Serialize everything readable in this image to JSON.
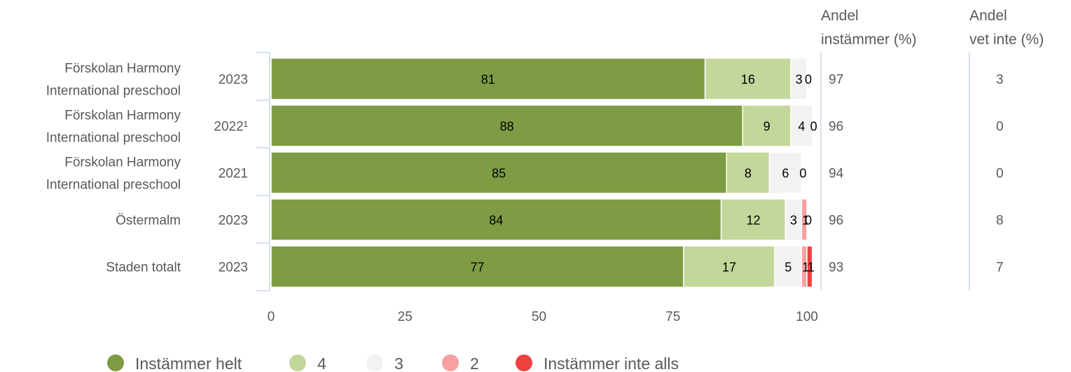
{
  "chart_data": {
    "type": "bar",
    "orientation": "horizontal",
    "stacked": true,
    "rows": [
      {
        "category": "Förskolan Harmony International preschool",
        "category_lines": [
          "Förskolan Harmony",
          "International preschool"
        ],
        "year": "2023"
      },
      {
        "category": "Förskolan Harmony International preschool",
        "category_lines": [
          "Förskolan Harmony",
          "International preschool"
        ],
        "year": "2022¹"
      },
      {
        "category": "Förskolan Harmony International preschool",
        "category_lines": [
          "Förskolan Harmony",
          "International preschool"
        ],
        "year": "2021"
      },
      {
        "category": "Östermalm",
        "category_lines": [
          "Östermalm"
        ],
        "year": "2023"
      },
      {
        "category": "Staden totalt",
        "category_lines": [
          "Staden totalt"
        ],
        "year": "2023"
      }
    ],
    "series": [
      {
        "name": "Instämmer helt",
        "color": "#7e9c43",
        "values": [
          81,
          88,
          85,
          84,
          77
        ],
        "labels": [
          "81",
          "88",
          "85",
          "84",
          "77"
        ]
      },
      {
        "name": "4",
        "color": "#c4d79b",
        "values": [
          16,
          9,
          8,
          12,
          17
        ],
        "labels": [
          "16",
          "9",
          "8",
          "12",
          "17"
        ]
      },
      {
        "name": "3",
        "color": "#f2f2f2",
        "values": [
          3,
          4,
          6,
          3,
          5
        ],
        "labels": [
          "3",
          "4",
          "6",
          "3",
          "5"
        ]
      },
      {
        "name": "2",
        "color": "#f7a0a0",
        "values": [
          0,
          0,
          0,
          1,
          1
        ],
        "labels": [
          "0",
          "0",
          "0",
          "1",
          "1"
        ]
      },
      {
        "name": "Instämmer inte alls",
        "color": "#f04040",
        "values": [
          0,
          0,
          0,
          0,
          1
        ],
        "labels": [
          "",
          "",
          "",
          "0",
          "1"
        ]
      }
    ],
    "xlim": [
      0,
      100
    ],
    "xticks": [
      "0",
      "25",
      "50",
      "75",
      "100"
    ],
    "extra_columns": [
      {
        "header_lines": [
          "Andel",
          "instämmer (%)"
        ],
        "values": [
          "97",
          "96",
          "94",
          "96",
          "93"
        ]
      },
      {
        "header_lines": [
          "Andel",
          "vet inte (%)"
        ],
        "values": [
          "3",
          "0",
          "0",
          "8",
          "7"
        ]
      }
    ],
    "legend_position": "bottom-left",
    "grid": false
  }
}
